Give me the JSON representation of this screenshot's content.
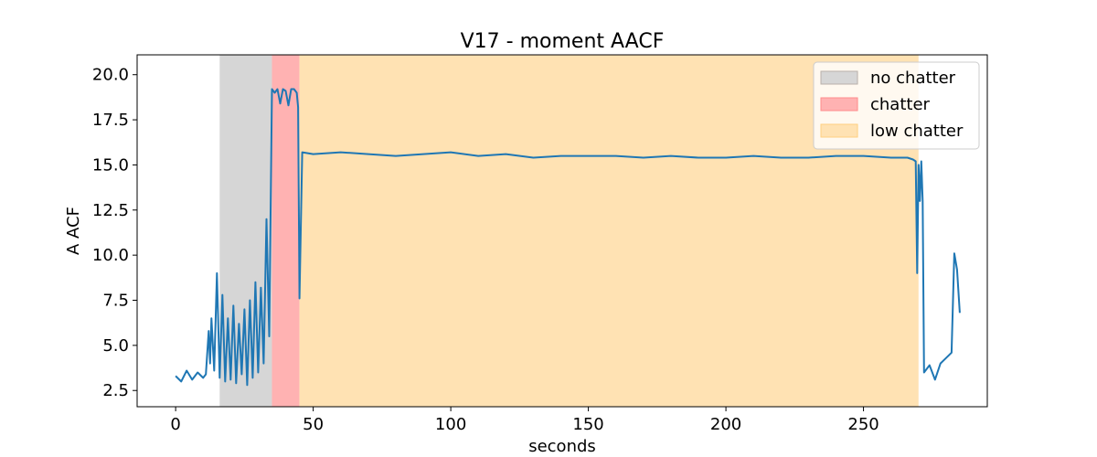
{
  "chart_data": {
    "type": "line",
    "title": "V17 - moment AACF",
    "xlabel": "seconds",
    "ylabel": "A ACF",
    "xlim": [
      -14,
      295
    ],
    "ylim": [
      1.6,
      21.1
    ],
    "xticks": [
      0,
      50,
      100,
      150,
      200,
      250
    ],
    "yticks": [
      2.5,
      5.0,
      7.5,
      10.0,
      12.5,
      15.0,
      17.5,
      20.0
    ],
    "xtick_labels": [
      "0",
      "50",
      "100",
      "150",
      "200",
      "250"
    ],
    "ytick_labels": [
      "2.5",
      "5.0",
      "7.5",
      "10.0",
      "12.5",
      "15.0",
      "17.5",
      "20.0"
    ],
    "grid": false,
    "legend_position": "top-right",
    "regions": [
      {
        "name": "no chatter",
        "x_start": 16,
        "x_end": 35,
        "color": "#d6d6d6",
        "border": "#b8b0aa"
      },
      {
        "name": "chatter",
        "x_start": 35,
        "x_end": 45,
        "color": "#ffb2b2",
        "border": "#ff8c8c"
      },
      {
        "name": "low chatter",
        "x_start": 45,
        "x_end": 270,
        "color": "#ffe2b3",
        "border": "#ffd080"
      }
    ],
    "series": [
      {
        "color": "#1f77b4",
        "x": [
          0,
          2,
          4,
          6,
          8,
          10,
          11,
          12,
          12.5,
          13,
          14,
          15,
          16,
          17,
          18,
          19,
          20,
          21,
          22,
          23,
          24,
          25,
          26,
          27,
          28,
          29,
          30,
          31,
          32,
          33,
          34,
          35,
          36,
          37,
          38,
          39,
          40,
          41,
          42,
          43,
          44,
          44.5,
          45,
          46,
          50,
          60,
          70,
          80,
          90,
          100,
          110,
          120,
          130,
          140,
          150,
          160,
          170,
          180,
          190,
          200,
          210,
          220,
          230,
          240,
          250,
          260,
          266,
          268,
          269,
          269.5,
          270,
          270.5,
          271,
          271.5,
          272,
          274,
          276,
          278,
          280,
          282,
          283,
          284,
          285
        ],
        "y": [
          3.3,
          3.0,
          3.6,
          3.1,
          3.5,
          3.2,
          3.4,
          5.8,
          4.0,
          6.5,
          3.6,
          9.0,
          3.2,
          7.8,
          3.0,
          6.5,
          3.1,
          7.2,
          2.9,
          6.2,
          3.4,
          7.0,
          2.8,
          7.5,
          3.2,
          8.5,
          3.5,
          8.2,
          4.0,
          12.0,
          5.5,
          19.2,
          19.0,
          19.2,
          18.4,
          19.2,
          19.1,
          18.3,
          19.2,
          19.2,
          19.0,
          18.2,
          7.6,
          15.7,
          15.6,
          15.7,
          15.6,
          15.5,
          15.6,
          15.7,
          15.5,
          15.6,
          15.4,
          15.5,
          15.5,
          15.5,
          15.4,
          15.5,
          15.4,
          15.4,
          15.5,
          15.4,
          15.4,
          15.5,
          15.5,
          15.4,
          15.4,
          15.3,
          15.2,
          9.0,
          15.0,
          13.0,
          15.2,
          13.0,
          3.5,
          3.9,
          3.1,
          4.0,
          4.3,
          4.6,
          10.1,
          9.2,
          6.8
        ]
      }
    ]
  }
}
